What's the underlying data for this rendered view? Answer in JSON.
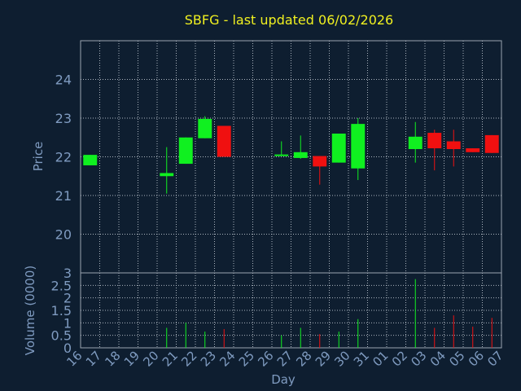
{
  "chart_data": {
    "type": "candlestick",
    "title": "SBFG - last updated 06/02/2026",
    "xlabel": "Day",
    "colors": {
      "up": "#10f020",
      "down": "#f01010",
      "text": "#7f9bc0",
      "title": "#f0f020",
      "background": "#0e1e30"
    },
    "price_panel": {
      "ylabel": "Price",
      "ylim": [
        19,
        25
      ],
      "yticks": [
        "20",
        "21",
        "22",
        "23",
        "24"
      ],
      "ytick_values": [
        20,
        21,
        22,
        23,
        24
      ]
    },
    "volume_panel": {
      "ylabel": "Volume (0000)",
      "ylim": [
        0,
        3
      ],
      "yticks": [
        "0",
        "0.5",
        "1",
        "1.5",
        "2",
        "2.5",
        "3"
      ],
      "ytick_values": [
        0,
        0.5,
        1,
        1.5,
        2,
        2.5,
        3
      ]
    },
    "x_ticks": [
      "16",
      "17",
      "18",
      "19",
      "20",
      "21",
      "22",
      "23",
      "24",
      "25",
      "26",
      "27",
      "28",
      "29",
      "30",
      "31",
      "01",
      "02",
      "03",
      "04",
      "05",
      "06",
      "07"
    ],
    "candles": [
      {
        "slot": 0,
        "open": 21.78,
        "high": 22.05,
        "low": 21.78,
        "close": 22.05,
        "volume": 0.0
      },
      {
        "slot": 4,
        "open": 21.5,
        "high": 22.25,
        "low": 21.05,
        "close": 21.58,
        "volume": 0.8
      },
      {
        "slot": 5,
        "open": 21.82,
        "high": 22.5,
        "low": 21.82,
        "close": 22.5,
        "volume": 1.0
      },
      {
        "slot": 6,
        "open": 22.48,
        "high": 23.05,
        "low": 22.48,
        "close": 22.98,
        "volume": 0.65
      },
      {
        "slot": 7,
        "open": 22.8,
        "high": 22.8,
        "low": 22.0,
        "close": 22.0,
        "volume": 0.75
      },
      {
        "slot": 10,
        "open": 22.03,
        "high": 22.4,
        "low": 22.03,
        "close": 22.06,
        "volume": 0.5
      },
      {
        "slot": 11,
        "open": 21.97,
        "high": 22.55,
        "low": 21.95,
        "close": 22.12,
        "volume": 0.8
      },
      {
        "slot": 12,
        "open": 22.02,
        "high": 22.02,
        "low": 21.28,
        "close": 21.75,
        "volume": 0.55
      },
      {
        "slot": 13,
        "open": 21.85,
        "high": 22.6,
        "low": 21.85,
        "close": 22.6,
        "volume": 0.65
      },
      {
        "slot": 14,
        "open": 21.7,
        "high": 23.0,
        "low": 21.4,
        "close": 22.85,
        "volume": 1.15
      },
      {
        "slot": 17,
        "open": 22.2,
        "high": 22.9,
        "low": 21.85,
        "close": 22.52,
        "volume": 2.75
      },
      {
        "slot": 18,
        "open": 22.62,
        "high": 22.7,
        "low": 21.65,
        "close": 22.22,
        "volume": 0.8
      },
      {
        "slot": 19,
        "open": 22.4,
        "high": 22.7,
        "low": 21.75,
        "close": 22.2,
        "volume": 1.3
      },
      {
        "slot": 20,
        "open": 22.22,
        "high": 22.22,
        "low": 22.12,
        "close": 22.12,
        "volume": 0.85
      },
      {
        "slot": 21,
        "open": 22.56,
        "high": 22.56,
        "low": 22.1,
        "close": 22.1,
        "volume": 1.2
      }
    ]
  }
}
